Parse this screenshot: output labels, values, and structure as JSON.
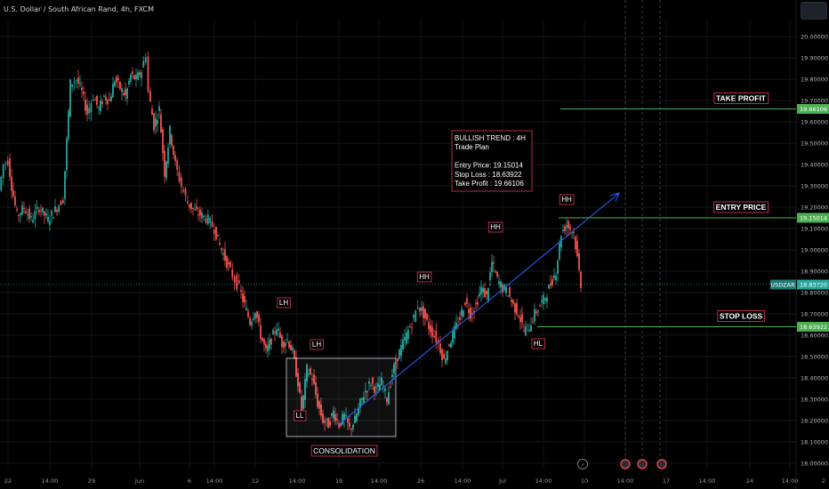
{
  "header": {
    "title": "U.S. Dollar / South African Rand, 4h, FXCM"
  },
  "chart_data": {
    "type": "candlestick",
    "y_ticks": [
      18.0,
      18.1,
      18.2,
      18.3,
      18.4,
      18.5,
      18.6,
      18.7,
      18.8,
      18.9,
      19.0,
      19.1,
      19.2,
      19.3,
      19.4,
      19.5,
      19.6,
      19.7,
      19.8,
      19.9,
      20.0
    ],
    "y_range": [
      17.97,
      20.08
    ],
    "x_ticks": [
      "22",
      "14:00",
      "29",
      "Jun",
      "6",
      "14:00",
      "12",
      "14:00",
      "19",
      "14:00",
      "26",
      "14:00",
      "Jul",
      "14:00",
      "10",
      "14:00",
      "17",
      "14:00",
      "24",
      "14:00",
      "2"
    ],
    "price_labels": [
      {
        "text": "19.66106",
        "value": 19.66106,
        "color": "#4caf50"
      },
      {
        "text": "19.15014",
        "value": 19.15014,
        "color": "#4caf50"
      },
      {
        "text": "18.83720",
        "value": 18.8372,
        "color": "#26a69a",
        "badge": "USDZAR"
      },
      {
        "text": "18.63922",
        "value": 18.63922,
        "color": "#4caf50"
      }
    ],
    "level_labels": [
      {
        "text": "TAKE PROFIT",
        "value": 19.66106
      },
      {
        "text": "ENTRY PRICE",
        "value": 19.15014
      },
      {
        "text": "STOP LOSS",
        "value": 18.63922
      }
    ],
    "swing_labels": [
      {
        "text": "LH",
        "value": 18.72
      },
      {
        "text": "LH",
        "value": 18.54
      },
      {
        "text": "LL",
        "value": 18.24
      },
      {
        "text": "HH",
        "value": 18.77
      },
      {
        "text": "HH",
        "value": 19.03
      },
      {
        "text": "HL",
        "value": 18.54
      },
      {
        "text": "HH",
        "value": 19.19
      }
    ],
    "consolidation_label": "CONSOLIDATION",
    "trade_plan": [
      "BULLISH TREND : 4H",
      "Trade Plan",
      "",
      "Entry Price: 19.15014",
      "Stop Loss : 18.63922",
      "Take Profit  : 19.66106"
    ],
    "colors": {
      "up": "#26a69a",
      "down": "#ef5350",
      "level": "#4caf50",
      "trend": "#2962ff"
    },
    "price_path": [
      [
        0,
        19.28
      ],
      [
        5,
        19.4
      ],
      [
        10,
        19.42
      ],
      [
        14,
        19.3
      ],
      [
        20,
        19.16
      ],
      [
        28,
        19.2
      ],
      [
        36,
        19.14
      ],
      [
        45,
        19.2
      ],
      [
        55,
        19.14
      ],
      [
        65,
        19.2
      ],
      [
        72,
        19.24
      ],
      [
        80,
        19.78
      ],
      [
        87,
        19.8
      ],
      [
        93,
        19.74
      ],
      [
        99,
        19.64
      ],
      [
        106,
        19.72
      ],
      [
        112,
        19.66
      ],
      [
        118,
        19.72
      ],
      [
        124,
        19.7
      ],
      [
        130,
        19.8
      ],
      [
        136,
        19.76
      ],
      [
        142,
        19.72
      ],
      [
        148,
        19.82
      ],
      [
        154,
        19.8
      ],
      [
        160,
        19.84
      ],
      [
        165,
        19.92
      ],
      [
        168,
        19.74
      ],
      [
        174,
        19.58
      ],
      [
        180,
        19.66
      ],
      [
        186,
        19.36
      ],
      [
        192,
        19.56
      ],
      [
        198,
        19.4
      ],
      [
        205,
        19.3
      ],
      [
        212,
        19.22
      ],
      [
        220,
        19.18
      ],
      [
        228,
        19.16
      ],
      [
        235,
        19.14
      ],
      [
        242,
        19.1
      ],
      [
        248,
        19.02
      ],
      [
        254,
        18.96
      ],
      [
        260,
        18.9
      ],
      [
        265,
        18.86
      ],
      [
        270,
        18.82
      ],
      [
        276,
        18.74
      ],
      [
        282,
        18.66
      ],
      [
        288,
        18.72
      ],
      [
        294,
        18.6
      ],
      [
        300,
        18.52
      ],
      [
        306,
        18.58
      ],
      [
        312,
        18.64
      ],
      [
        318,
        18.56
      ],
      [
        324,
        18.58
      ],
      [
        330,
        18.52
      ],
      [
        336,
        18.38
      ],
      [
        340,
        18.24
      ],
      [
        346,
        18.44
      ],
      [
        352,
        18.4
      ],
      [
        358,
        18.28
      ],
      [
        364,
        18.2
      ],
      [
        370,
        18.18
      ],
      [
        376,
        18.24
      ],
      [
        382,
        18.18
      ],
      [
        388,
        18.22
      ],
      [
        394,
        18.16
      ],
      [
        400,
        18.2
      ],
      [
        406,
        18.28
      ],
      [
        412,
        18.34
      ],
      [
        418,
        18.38
      ],
      [
        424,
        18.34
      ],
      [
        430,
        18.38
      ],
      [
        436,
        18.3
      ],
      [
        442,
        18.42
      ],
      [
        448,
        18.5
      ],
      [
        454,
        18.56
      ],
      [
        460,
        18.62
      ],
      [
        466,
        18.68
      ],
      [
        471,
        18.74
      ],
      [
        477,
        18.7
      ],
      [
        483,
        18.64
      ],
      [
        489,
        18.6
      ],
      [
        494,
        18.56
      ],
      [
        500,
        18.48
      ],
      [
        506,
        18.56
      ],
      [
        512,
        18.62
      ],
      [
        518,
        18.68
      ],
      [
        524,
        18.76
      ],
      [
        530,
        18.7
      ],
      [
        536,
        18.74
      ],
      [
        542,
        18.82
      ],
      [
        548,
        18.78
      ],
      [
        554,
        18.94
      ],
      [
        560,
        18.86
      ],
      [
        566,
        18.82
      ],
      [
        572,
        18.8
      ],
      [
        578,
        18.74
      ],
      [
        584,
        18.7
      ],
      [
        590,
        18.62
      ],
      [
        596,
        18.64
      ],
      [
        602,
        18.7
      ],
      [
        608,
        18.74
      ],
      [
        614,
        18.78
      ],
      [
        620,
        18.84
      ],
      [
        626,
        18.9
      ],
      [
        632,
        19.08
      ],
      [
        638,
        19.12
      ],
      [
        642,
        19.1
      ],
      [
        646,
        19.08
      ],
      [
        650,
        18.96
      ],
      [
        654,
        18.84
      ]
    ]
  }
}
